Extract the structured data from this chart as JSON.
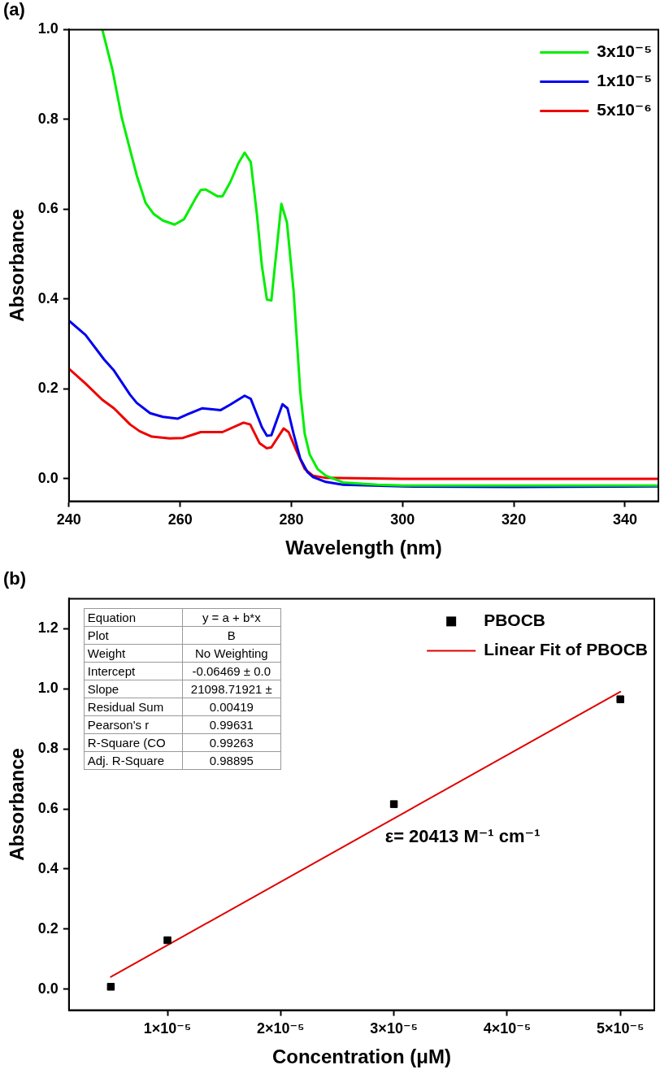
{
  "chart_data": [
    {
      "type": "line",
      "title": "(a)",
      "xlabel": "Wavelength (nm)",
      "ylabel": "Absorbance",
      "xlim": [
        240,
        346
      ],
      "ylim": [
        -0.05,
        1.0
      ],
      "xticks": [
        240,
        260,
        280,
        300,
        320,
        340
      ],
      "yticks": [
        {
          "value": 0,
          "label": "0.0"
        },
        {
          "value": 0.2,
          "label": "0.2"
        },
        {
          "value": 0.4,
          "label": "0.4"
        },
        {
          "value": 0.6,
          "label": "0.6"
        },
        {
          "value": 0.8,
          "label": "0.8"
        },
        {
          "value": 1.0,
          "label": "1.0"
        }
      ],
      "legend": "top right",
      "marker": "none",
      "line_style": "solid",
      "series": [
        {
          "name": "3x10⁻⁵",
          "color": "#00ee00",
          "x": [
            246.0,
            247.8,
            249.5,
            251.0,
            252.2,
            253.8,
            255.2,
            256.9,
            259.0,
            260.7,
            262.8,
            263.7,
            264.6,
            266.7,
            267.6,
            269.0,
            270.5,
            271.6,
            272.7,
            273.8,
            274.7,
            275.6,
            276.4,
            278.2,
            279.2,
            280.4,
            281.6,
            282.4,
            283.3,
            284.7,
            286.2,
            289.3,
            295.5,
            300,
            320,
            346
          ],
          "values": [
            1.0,
            0.912,
            0.804,
            0.732,
            0.675,
            0.614,
            0.59,
            0.575,
            0.566,
            0.578,
            0.625,
            0.643,
            0.644,
            0.629,
            0.629,
            0.66,
            0.703,
            0.726,
            0.705,
            0.589,
            0.474,
            0.399,
            0.397,
            0.612,
            0.571,
            0.418,
            0.194,
            0.1,
            0.054,
            0.022,
            0.007,
            -0.008,
            -0.013,
            -0.015,
            -0.015,
            -0.015
          ]
        },
        {
          "name": "1x10⁻⁵",
          "color": "#0000ee",
          "x": [
            240,
            243.0,
            246.3,
            248.1,
            251.0,
            252.2,
            254.6,
            256.9,
            259.6,
            261.4,
            264.0,
            267.3,
            269.0,
            271.6,
            272.7,
            274.7,
            275.6,
            276.4,
            278.4,
            279.3,
            280.4,
            281.6,
            282.9,
            283.9,
            286.2,
            289.3,
            300,
            320,
            346
          ],
          "values": [
            0.352,
            0.32,
            0.266,
            0.241,
            0.187,
            0.169,
            0.146,
            0.138,
            0.134,
            0.144,
            0.157,
            0.153,
            0.165,
            0.185,
            0.178,
            0.115,
            0.096,
            0.097,
            0.166,
            0.157,
            0.1,
            0.045,
            0.015,
            0.004,
            -0.007,
            -0.013,
            -0.017,
            -0.018,
            -0.017
          ]
        },
        {
          "name": "5x10⁻⁶",
          "color": "#ee0000",
          "x": [
            240,
            243.0,
            246.0,
            248.1,
            251.0,
            252.7,
            254.9,
            258.1,
            260.5,
            263.7,
            267.6,
            271.4,
            272.6,
            274.3,
            275.6,
            276.4,
            278.6,
            279.5,
            280.9,
            282.4,
            283.9,
            286.2,
            300,
            320,
            346
          ],
          "values": [
            0.245,
            0.212,
            0.176,
            0.157,
            0.121,
            0.106,
            0.094,
            0.09,
            0.091,
            0.104,
            0.104,
            0.125,
            0.121,
            0.079,
            0.068,
            0.07,
            0.112,
            0.104,
            0.063,
            0.022,
            0.007,
            0.002,
            0.0,
            0.0,
            0.0
          ]
        }
      ]
    },
    {
      "type": "scatter",
      "title": "(b)",
      "xlabel": "Concentration (μM)",
      "ylabel": "Absorbance",
      "xlim": [
        1.3e-06,
        5.3e-05
      ],
      "ylim": [
        -0.07,
        1.3
      ],
      "xticks": [
        {
          "value": 1e-05,
          "label": "1×10⁻⁵"
        },
        {
          "value": 2e-05,
          "label": "2×10⁻⁵"
        },
        {
          "value": 3e-05,
          "label": "3×10⁻⁵"
        },
        {
          "value": 4e-05,
          "label": "4×10⁻⁵"
        },
        {
          "value": 5e-05,
          "label": "5×10⁻⁵"
        }
      ],
      "yticks": [
        {
          "value": 0,
          "label": "0.0"
        },
        {
          "value": 0.2,
          "label": "0.2"
        },
        {
          "value": 0.4,
          "label": "0.4"
        },
        {
          "value": 0.6,
          "label": "0.6"
        },
        {
          "value": 0.8,
          "label": "0.8"
        },
        {
          "value": 1.0,
          "label": "1.0"
        },
        {
          "value": 1.2,
          "label": "1.2"
        }
      ],
      "legend": "top right",
      "x": [
        5e-06,
        1e-05,
        3e-05,
        5e-05
      ],
      "annotations": [
        "Equation",
        "y = a + b*x",
        "Plot",
        "B",
        "Weight",
        "No Weighting",
        "Intercept",
        "-0.06469 ± 0.0",
        "Slope",
        "21098.71921 ±",
        "Residual Sum",
        "0.00419",
        "Pearson's r",
        "0.99631",
        "R-Square (CO",
        "0.99263",
        "Adj. R-Square",
        "0.98895",
        "ε= 20413 M⁻¹ cm⁻¹"
      ],
      "series": [
        {
          "name": "PBOCB",
          "color": "#000000",
          "marker": "square",
          "values": [
            0.008,
            0.163,
            0.616,
            0.965
          ]
        },
        {
          "name": "Linear Fit of PBOCB",
          "type": "line",
          "color": "#e00000",
          "marker": "none",
          "x": [
            5e-06,
            5e-05
          ],
          "values": [
            0.041,
            0.99
          ]
        }
      ]
    }
  ]
}
